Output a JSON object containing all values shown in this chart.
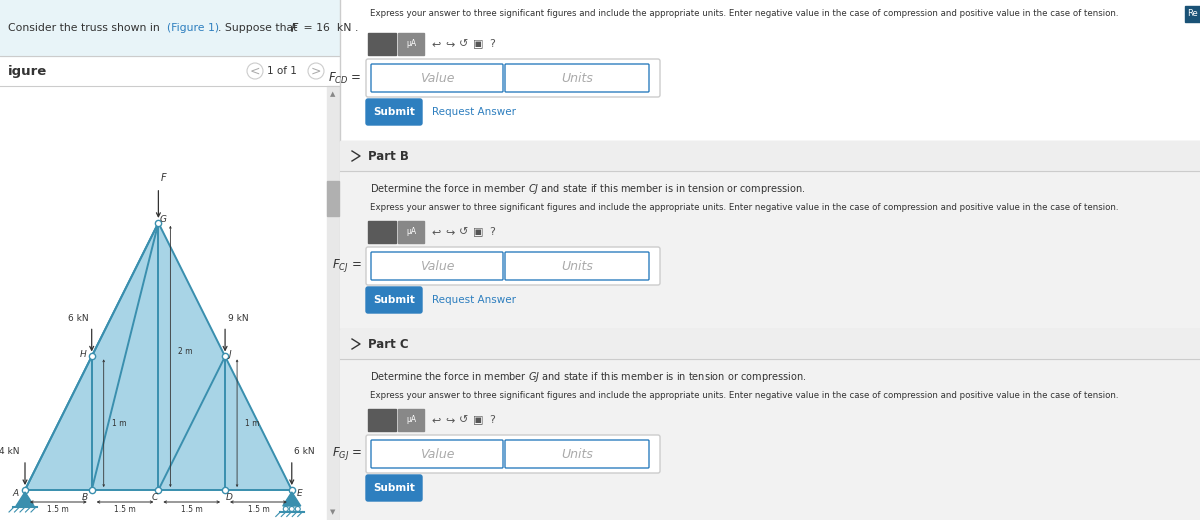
{
  "bg_color": "#f0f0f0",
  "left_panel_bg": "#ffffff",
  "right_panel_bg": "#ffffff",
  "header_bg": "#e8f4f8",
  "teal_color": "#2e8fa3",
  "submit_color": "#2e7fbf",
  "link_color": "#2e7fbf",
  "text_color": "#333333",
  "mid_text": "#555555",
  "truss_fill": "#a8d4e6",
  "truss_stroke": "#3a8fae",
  "express_text": "Express your answer to three significant figures and include the appropriate units. Enter negative value in the case of compression and positive value in the case of tension.",
  "re_badge_color": "#1a5276",
  "section_header_bg": "#efefef",
  "section_bg": "#f8f8f8",
  "divider_color": "#cccccc",
  "input_border": "#bbbbbb",
  "input_blue": "#2e7fbf",
  "placeholder_color": "#aaaaaa",
  "toolbar_dark": "#555555",
  "toolbar_mid": "#888888",
  "dim_labels": [
    "1.5 m",
    "1.5 m",
    "1.5 m",
    "1.5 m"
  ]
}
